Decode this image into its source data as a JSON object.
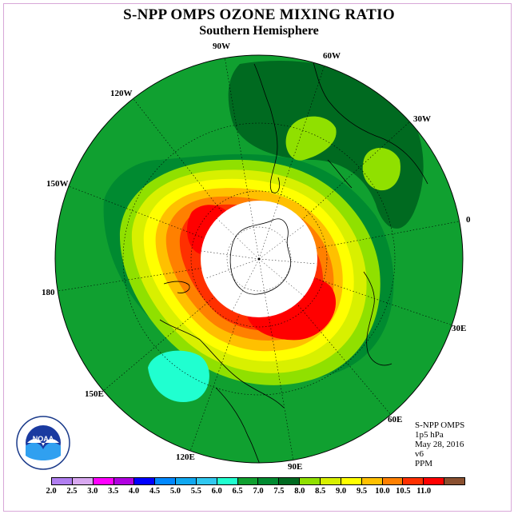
{
  "title": "S-NPP OMPS OZONE MIXING RATIO",
  "subtitle": "Southern Hemisphere",
  "longitude_labels": [
    "90W",
    "60W",
    "30W",
    "0",
    "30E",
    "60E",
    "90E",
    "120E",
    "150E",
    "180",
    "150W",
    "120W"
  ],
  "info": {
    "instrument": "S-NPP OMPS",
    "level": "1p5 hPa",
    "date": "May 28, 2016",
    "version": "v6",
    "units": "PPM"
  },
  "colorbar": {
    "ticks": [
      "2.0",
      "2.5",
      "3.0",
      "3.5",
      "4.0",
      "4.5",
      "5.0",
      "5.5",
      "6.0",
      "6.5",
      "7.0",
      "7.5",
      "8.0",
      "8.5",
      "9.0",
      "9.5",
      "10.0",
      "10.5",
      "11.0"
    ],
    "colors": [
      "#b07ef0",
      "#d8a8f0",
      "#ff00ff",
      "#b000e0",
      "#0000ff",
      "#0088ff",
      "#10a8f0",
      "#30c8f0",
      "#20ffd0",
      "#10a030",
      "#008a30",
      "#006a20",
      "#90e000",
      "#d8f000",
      "#ffff00",
      "#ffc000",
      "#ff8000",
      "#ff3000",
      "#ff0000",
      "#8a5030"
    ]
  },
  "logo_text": "NOAA",
  "colors": {
    "background_field": "#10a030",
    "frame": "#d8a8d8"
  }
}
